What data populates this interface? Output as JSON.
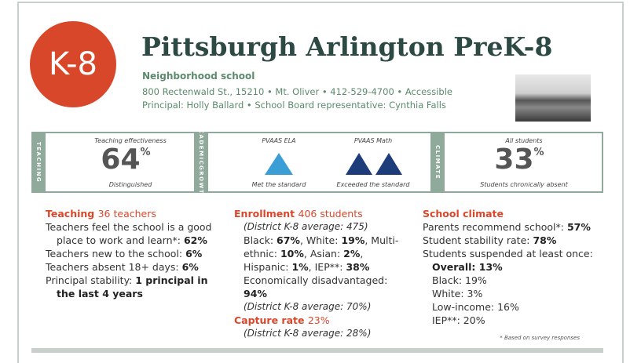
{
  "badge": "K-8",
  "header": {
    "title": "Pittsburgh Arlington PreK-8",
    "subtitle": "Neighborhood school",
    "address": "800 Rectenwald St., 15210 • Mt. Oliver • 412-529-4700 • Accessible",
    "people": "Principal: Holly Ballard • School Board representative: Cynthia Falls"
  },
  "stats": {
    "teaching": {
      "label": "TEACHING",
      "caption": "Teaching effectiveness",
      "value": 64,
      "unit": "%",
      "rating": "Distinguished"
    },
    "growth": {
      "label": [
        "ACADEMIC",
        "GROWTH"
      ],
      "ela": {
        "caption": "PVAAS ELA",
        "rating": "Met the standard"
      },
      "math": {
        "caption": "PVAAS Math",
        "rating": "Exceeded the standard"
      }
    },
    "climate": {
      "label": "CLIMATE",
      "caption": "All students",
      "value": 33,
      "unit": "%",
      "rating": "Students chronically absent"
    }
  },
  "teaching": {
    "heading": "Teaching",
    "count": "36 teachers",
    "items": [
      [
        "Teachers feel the school is a good place to work and learn*: ",
        "62%"
      ],
      [
        "Teachers new to the school: ",
        "6%"
      ],
      [
        "Teachers absent 18+ days: ",
        "6%"
      ],
      [
        "Principal stability: ",
        "1 principal in the last 4 years"
      ]
    ]
  },
  "enrollment": {
    "heading": "Enrollment",
    "count": "406 students",
    "district": "(District K-8 average: 475)",
    "demographics": [
      "Black: ",
      "67%",
      ", White: ",
      "19%",
      ", Multi-ethnic: ",
      "10%",
      ", Asian: ",
      "2%",
      ", Hispanic: ",
      "1%",
      ", IEP**: ",
      "38%"
    ],
    "disadvantaged": [
      "Economically disadvantaged: ",
      "94%"
    ],
    "district_disadvantaged": "(District K-8 average: 70%)"
  },
  "capture": {
    "heading": "Capture rate",
    "value": "23%",
    "district": "(District K-8 average: 28%)"
  },
  "climate": {
    "heading": "School climate",
    "items": [
      [
        "Parents recommend school*: ",
        "57%"
      ],
      [
        "Student stability rate: ",
        "78%"
      ],
      [
        "Students suspended at least once:"
      ]
    ],
    "overall": "Overall: 13%",
    "groups": [
      "Black: 19%",
      "White: 3%",
      "Low-income: 16%",
      "IEP**: 20%"
    ]
  },
  "footnote": "* Based on survey responses"
}
